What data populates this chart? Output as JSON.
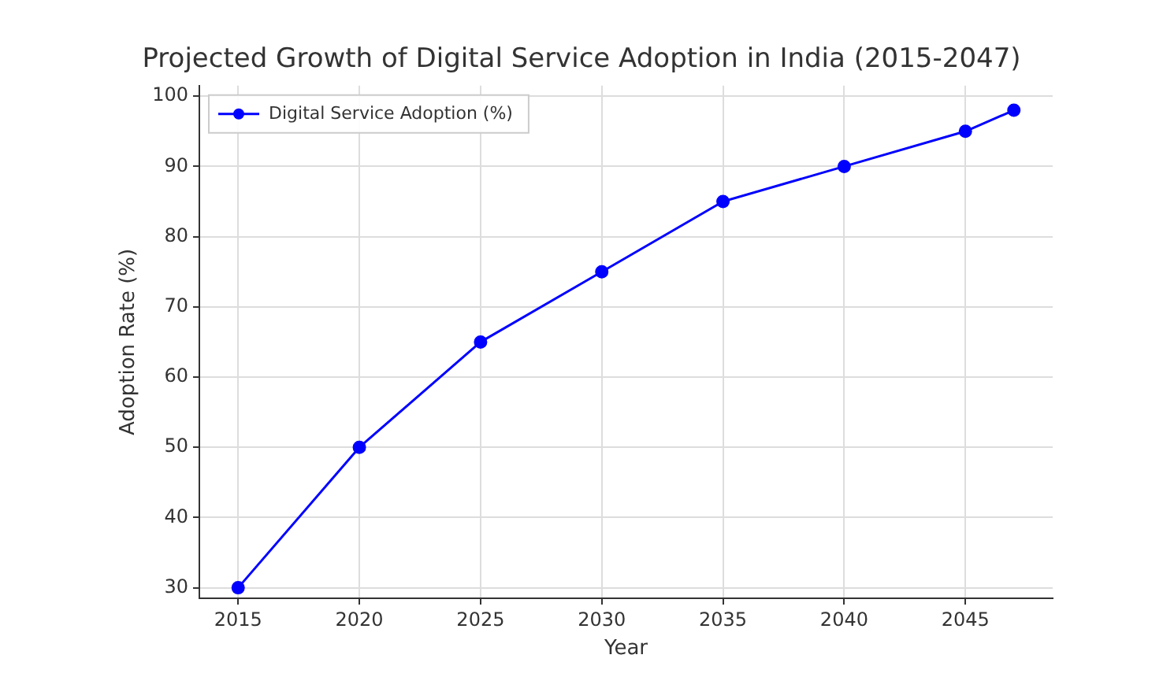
{
  "chart_data": {
    "type": "line",
    "title": "Projected Growth of Digital Service Adoption in India (2015-2047)",
    "xlabel": "Year",
    "ylabel": "Adoption Rate (%)",
    "x": [
      2015,
      2020,
      2025,
      2030,
      2035,
      2040,
      2045,
      2047
    ],
    "series": [
      {
        "name": "Digital Service Adoption (%)",
        "color": "#0000ff",
        "values": [
          30,
          50,
          65,
          75,
          85,
          90,
          95,
          98
        ]
      }
    ],
    "xlim": [
      2013.4,
      2048.6
    ],
    "xticks": [
      2015,
      2020,
      2025,
      2030,
      2035,
      2040,
      2045
    ],
    "ylim": [
      28.5,
      101.5
    ],
    "yticks": [
      30,
      40,
      50,
      60,
      70,
      80,
      90,
      100
    ],
    "grid": true,
    "legend": "top left",
    "marker": "circle",
    "line_style": "solid"
  }
}
